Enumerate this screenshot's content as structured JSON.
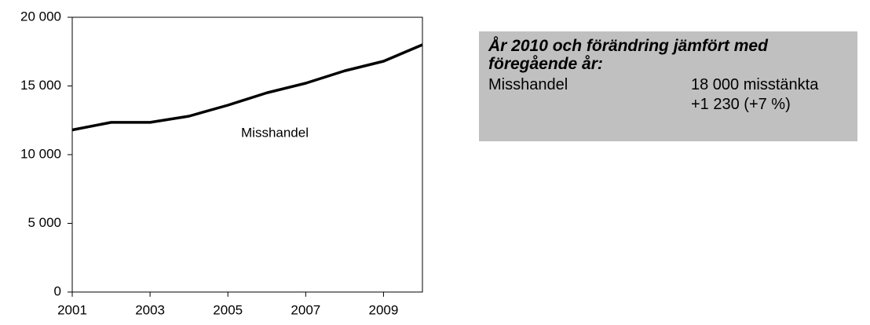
{
  "chart_data": {
    "type": "line",
    "x": [
      2001,
      2002,
      2003,
      2004,
      2005,
      2006,
      2007,
      2008,
      2009,
      2010
    ],
    "series": [
      {
        "name": "Misshandel",
        "color": "#000000",
        "values": [
          11800,
          12350,
          12350,
          12800,
          13600,
          14500,
          15200,
          16100,
          16800,
          18000
        ]
      }
    ],
    "xlim": [
      2001,
      2010
    ],
    "xticks": [
      2001,
      2003,
      2005,
      2007,
      2009
    ],
    "ylim": [
      0,
      20000
    ],
    "yticks": [
      {
        "value": 0,
        "label": "0"
      },
      {
        "value": 5000,
        "label": "5 000"
      },
      {
        "value": 10000,
        "label": "10 000"
      },
      {
        "value": 15000,
        "label": "15 000"
      },
      {
        "value": 20000,
        "label": "20 000"
      }
    ],
    "grid": false
  },
  "summary_box": {
    "title": "År 2010 och förändring jämfört med föregående år:",
    "label": "Misshandel",
    "count": "18 000 misstänkta",
    "change": "+1 230 (+7 %)"
  }
}
